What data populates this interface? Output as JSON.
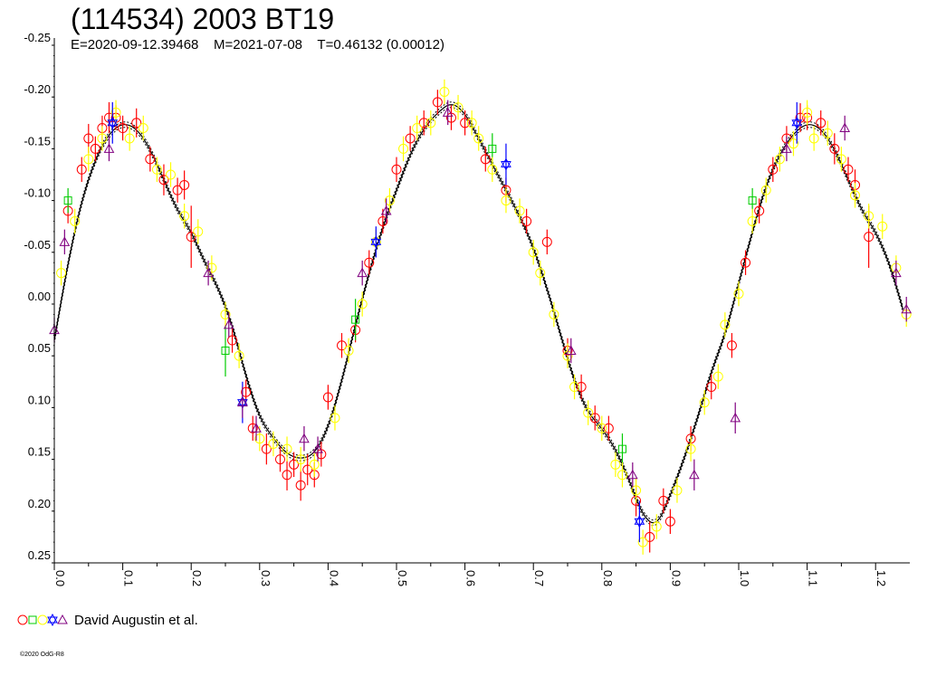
{
  "header": {
    "title": "(114534) 2003 BT19",
    "subtitle": "E=2020-09-12.39468    M=2021-07-08    T=0.46132 (0.00012)"
  },
  "legend": {
    "label": "David Augustin et al.",
    "symbols": [
      {
        "shape": "circle",
        "color": "#ff0000"
      },
      {
        "shape": "square",
        "color": "#00cc00"
      },
      {
        "shape": "circle",
        "color": "#ffff00"
      },
      {
        "shape": "star",
        "color": "#0000ff"
      },
      {
        "shape": "triangle",
        "color": "#800080"
      }
    ]
  },
  "copyright": "©2020 OdG-R8",
  "chart_data": {
    "type": "scatter",
    "title": "(114534) 2003 BT19",
    "subtitle": "E=2020-09-12.39468    M=2021-07-08    T=0.46132 (0.00012)",
    "xlabel": "",
    "ylabel": "",
    "xlim": [
      0.0,
      1.25
    ],
    "ylim": [
      -0.25,
      0.25
    ],
    "y_inverted": true,
    "x_ticks": [
      "0.0",
      "0.1",
      "0.2",
      "0.3",
      "0.4",
      "0.5",
      "0.6",
      "0.7",
      "0.8",
      "0.9",
      "1.0",
      "1.1",
      "1.2"
    ],
    "y_ticks": [
      "-0.25",
      "-0.20",
      "-0.15",
      "-0.10",
      "-0.05",
      "0.00",
      "0.05",
      "0.10",
      "0.15",
      "0.20",
      "0.25"
    ],
    "grid": false,
    "legend_position": "bottom-left",
    "model_curve": {
      "x": [
        0.0,
        0.02,
        0.04,
        0.06,
        0.08,
        0.1,
        0.12,
        0.14,
        0.16,
        0.18,
        0.2,
        0.22,
        0.24,
        0.26,
        0.28,
        0.3,
        0.32,
        0.34,
        0.36,
        0.38,
        0.4,
        0.42,
        0.44,
        0.46,
        0.48,
        0.5,
        0.52,
        0.54,
        0.56,
        0.58,
        0.6,
        0.62,
        0.64,
        0.66,
        0.68,
        0.7,
        0.72,
        0.74,
        0.76,
        0.78,
        0.8,
        0.82,
        0.84,
        0.86,
        0.88,
        0.9,
        0.92,
        0.94,
        0.96,
        0.98,
        1.0,
        1.02,
        1.04,
        1.06,
        1.08,
        1.1,
        1.12,
        1.14,
        1.16,
        1.18,
        1.2,
        1.22,
        1.24
      ],
      "y": [
        0.035,
        -0.04,
        -0.1,
        -0.14,
        -0.165,
        -0.175,
        -0.17,
        -0.15,
        -0.12,
        -0.09,
        -0.07,
        -0.04,
        -0.015,
        0.02,
        0.07,
        0.11,
        0.13,
        0.145,
        0.15,
        0.145,
        0.12,
        0.075,
        0.02,
        -0.03,
        -0.075,
        -0.11,
        -0.145,
        -0.17,
        -0.185,
        -0.195,
        -0.185,
        -0.16,
        -0.135,
        -0.11,
        -0.085,
        -0.055,
        -0.015,
        0.03,
        0.075,
        0.105,
        0.12,
        0.14,
        0.17,
        0.205,
        0.215,
        0.185,
        0.15,
        0.11,
        0.065,
        0.03,
        -0.02,
        -0.07,
        -0.115,
        -0.145,
        -0.165,
        -0.175,
        -0.17,
        -0.15,
        -0.12,
        -0.09,
        -0.07,
        -0.04,
        0.005
      ]
    },
    "series": [
      {
        "shape": "circle",
        "color": "#ff0000",
        "x": [
          0.02,
          0.04,
          0.05,
          0.06,
          0.07,
          0.08,
          0.09,
          0.1,
          0.12,
          0.14,
          0.16,
          0.18,
          0.19,
          0.2,
          0.26,
          0.28,
          0.29,
          0.31,
          0.33,
          0.34,
          0.35,
          0.36,
          0.37,
          0.38,
          0.39,
          0.4,
          0.42,
          0.44,
          0.46,
          0.48,
          0.5,
          0.52,
          0.54,
          0.56,
          0.58,
          0.6,
          0.63,
          0.66,
          0.69,
          0.72,
          0.75,
          0.77,
          0.79,
          0.81,
          0.85,
          0.87,
          0.89,
          0.9,
          0.93,
          0.96,
          0.99,
          1.01,
          1.03,
          1.05,
          1.07,
          1.09,
          1.1,
          1.12,
          1.14,
          1.16,
          1.17,
          1.19
        ],
        "y": [
          -0.09,
          -0.13,
          -0.16,
          -0.15,
          -0.17,
          -0.18,
          -0.18,
          -0.17,
          -0.175,
          -0.14,
          -0.12,
          -0.11,
          -0.115,
          -0.065,
          0.035,
          0.085,
          0.12,
          0.14,
          0.15,
          0.165,
          0.155,
          0.175,
          0.16,
          0.165,
          0.145,
          0.09,
          0.04,
          0.025,
          -0.04,
          -0.08,
          -0.13,
          -0.16,
          -0.175,
          -0.195,
          -0.18,
          -0.175,
          -0.14,
          -0.11,
          -0.08,
          -0.06,
          0.045,
          0.08,
          0.11,
          0.12,
          0.19,
          0.225,
          0.19,
          0.21,
          0.13,
          0.08,
          0.04,
          -0.04,
          -0.09,
          -0.13,
          -0.16,
          -0.18,
          -0.18,
          -0.175,
          -0.15,
          -0.13,
          -0.115,
          -0.065
        ],
        "err": [
          0.012,
          0.012,
          0.014,
          0.012,
          0.012,
          0.015,
          0.012,
          0.012,
          0.014,
          0.012,
          0.015,
          0.012,
          0.014,
          0.03,
          0.012,
          0.012,
          0.012,
          0.015,
          0.012,
          0.015,
          0.012,
          0.015,
          0.015,
          0.012,
          0.012,
          0.012,
          0.012,
          0.012,
          0.012,
          0.012,
          0.012,
          0.012,
          0.012,
          0.012,
          0.012,
          0.012,
          0.012,
          0.012,
          0.012,
          0.012,
          0.012,
          0.012,
          0.012,
          0.012,
          0.015,
          0.015,
          0.012,
          0.012,
          0.012,
          0.012,
          0.012,
          0.012,
          0.012,
          0.012,
          0.012,
          0.014,
          0.012,
          0.012,
          0.015,
          0.012,
          0.015,
          0.03
        ]
      },
      {
        "shape": "square",
        "color": "#00cc00",
        "x": [
          0.02,
          0.25,
          0.44,
          0.64,
          0.83,
          1.02
        ],
        "y": [
          -0.1,
          0.045,
          0.015,
          -0.15,
          0.14,
          -0.1
        ],
        "err": [
          0.012,
          0.025,
          0.02,
          0.015,
          0.015,
          0.012
        ]
      },
      {
        "shape": "circle",
        "color": "#ffff00",
        "x": [
          0.01,
          0.03,
          0.05,
          0.07,
          0.09,
          0.11,
          0.13,
          0.15,
          0.17,
          0.19,
          0.21,
          0.23,
          0.25,
          0.27,
          0.3,
          0.32,
          0.34,
          0.36,
          0.38,
          0.41,
          0.43,
          0.45,
          0.47,
          0.49,
          0.51,
          0.53,
          0.55,
          0.57,
          0.59,
          0.61,
          0.62,
          0.64,
          0.66,
          0.68,
          0.7,
          0.71,
          0.73,
          0.75,
          0.76,
          0.78,
          0.8,
          0.82,
          0.83,
          0.85,
          0.86,
          0.88,
          0.91,
          0.93,
          0.95,
          0.97,
          0.98,
          1.0,
          1.02,
          1.04,
          1.06,
          1.08,
          1.1,
          1.11,
          1.13,
          1.15,
          1.17,
          1.19,
          1.21,
          1.23,
          1.245
        ],
        "y": [
          -0.03,
          -0.08,
          -0.14,
          -0.16,
          -0.185,
          -0.16,
          -0.17,
          -0.13,
          -0.125,
          -0.085,
          -0.07,
          -0.035,
          0.01,
          0.05,
          0.13,
          0.135,
          0.14,
          0.15,
          0.155,
          0.11,
          0.045,
          0.0,
          -0.06,
          -0.1,
          -0.15,
          -0.17,
          -0.175,
          -0.205,
          -0.19,
          -0.175,
          -0.16,
          -0.13,
          -0.1,
          -0.09,
          -0.05,
          -0.03,
          0.01,
          0.05,
          0.08,
          0.105,
          0.12,
          0.155,
          0.165,
          0.18,
          0.23,
          0.215,
          0.18,
          0.14,
          0.095,
          0.07,
          0.02,
          -0.01,
          -0.08,
          -0.11,
          -0.14,
          -0.155,
          -0.185,
          -0.16,
          -0.165,
          -0.14,
          -0.105,
          -0.085,
          -0.075,
          -0.035,
          0.01
        ],
        "err": [
          0.012,
          0.012,
          0.012,
          0.012,
          0.012,
          0.012,
          0.012,
          0.012,
          0.012,
          0.012,
          0.012,
          0.012,
          0.012,
          0.012,
          0.012,
          0.012,
          0.012,
          0.012,
          0.012,
          0.012,
          0.012,
          0.012,
          0.012,
          0.012,
          0.012,
          0.012,
          0.012,
          0.012,
          0.012,
          0.012,
          0.012,
          0.012,
          0.012,
          0.012,
          0.012,
          0.012,
          0.012,
          0.012,
          0.012,
          0.012,
          0.012,
          0.012,
          0.012,
          0.012,
          0.012,
          0.012,
          0.012,
          0.012,
          0.012,
          0.012,
          0.012,
          0.012,
          0.012,
          0.012,
          0.012,
          0.012,
          0.012,
          0.012,
          0.012,
          0.012,
          0.012,
          0.012,
          0.012,
          0.012,
          0.012
        ]
      },
      {
        "shape": "star",
        "color": "#0000ff",
        "x": [
          0.085,
          0.275,
          0.47,
          0.66,
          0.855,
          1.085
        ],
        "y": [
          -0.175,
          0.095,
          -0.06,
          -0.135,
          0.21,
          -0.175
        ],
        "err": [
          0.02,
          0.02,
          0.015,
          0.02,
          0.02,
          0.02
        ]
      },
      {
        "shape": "triangle",
        "color": "#800080",
        "x": [
          0.0,
          0.015,
          0.08,
          0.225,
          0.255,
          0.275,
          0.295,
          0.365,
          0.385,
          0.45,
          0.485,
          0.575,
          0.755,
          0.845,
          0.935,
          0.995,
          1.07,
          1.155,
          1.23,
          1.245
        ],
        "y": [
          0.025,
          -0.06,
          -0.15,
          -0.03,
          0.02,
          0.095,
          0.12,
          0.13,
          0.14,
          -0.03,
          -0.09,
          -0.185,
          0.045,
          0.165,
          0.165,
          0.11,
          -0.15,
          -0.17,
          -0.03,
          0.005
        ],
        "err": [
          0.012,
          0.012,
          0.012,
          0.012,
          0.012,
          0.015,
          0.012,
          0.012,
          0.012,
          0.012,
          0.012,
          0.012,
          0.012,
          0.012,
          0.015,
          0.015,
          0.012,
          0.012,
          0.012,
          0.012
        ]
      }
    ]
  }
}
